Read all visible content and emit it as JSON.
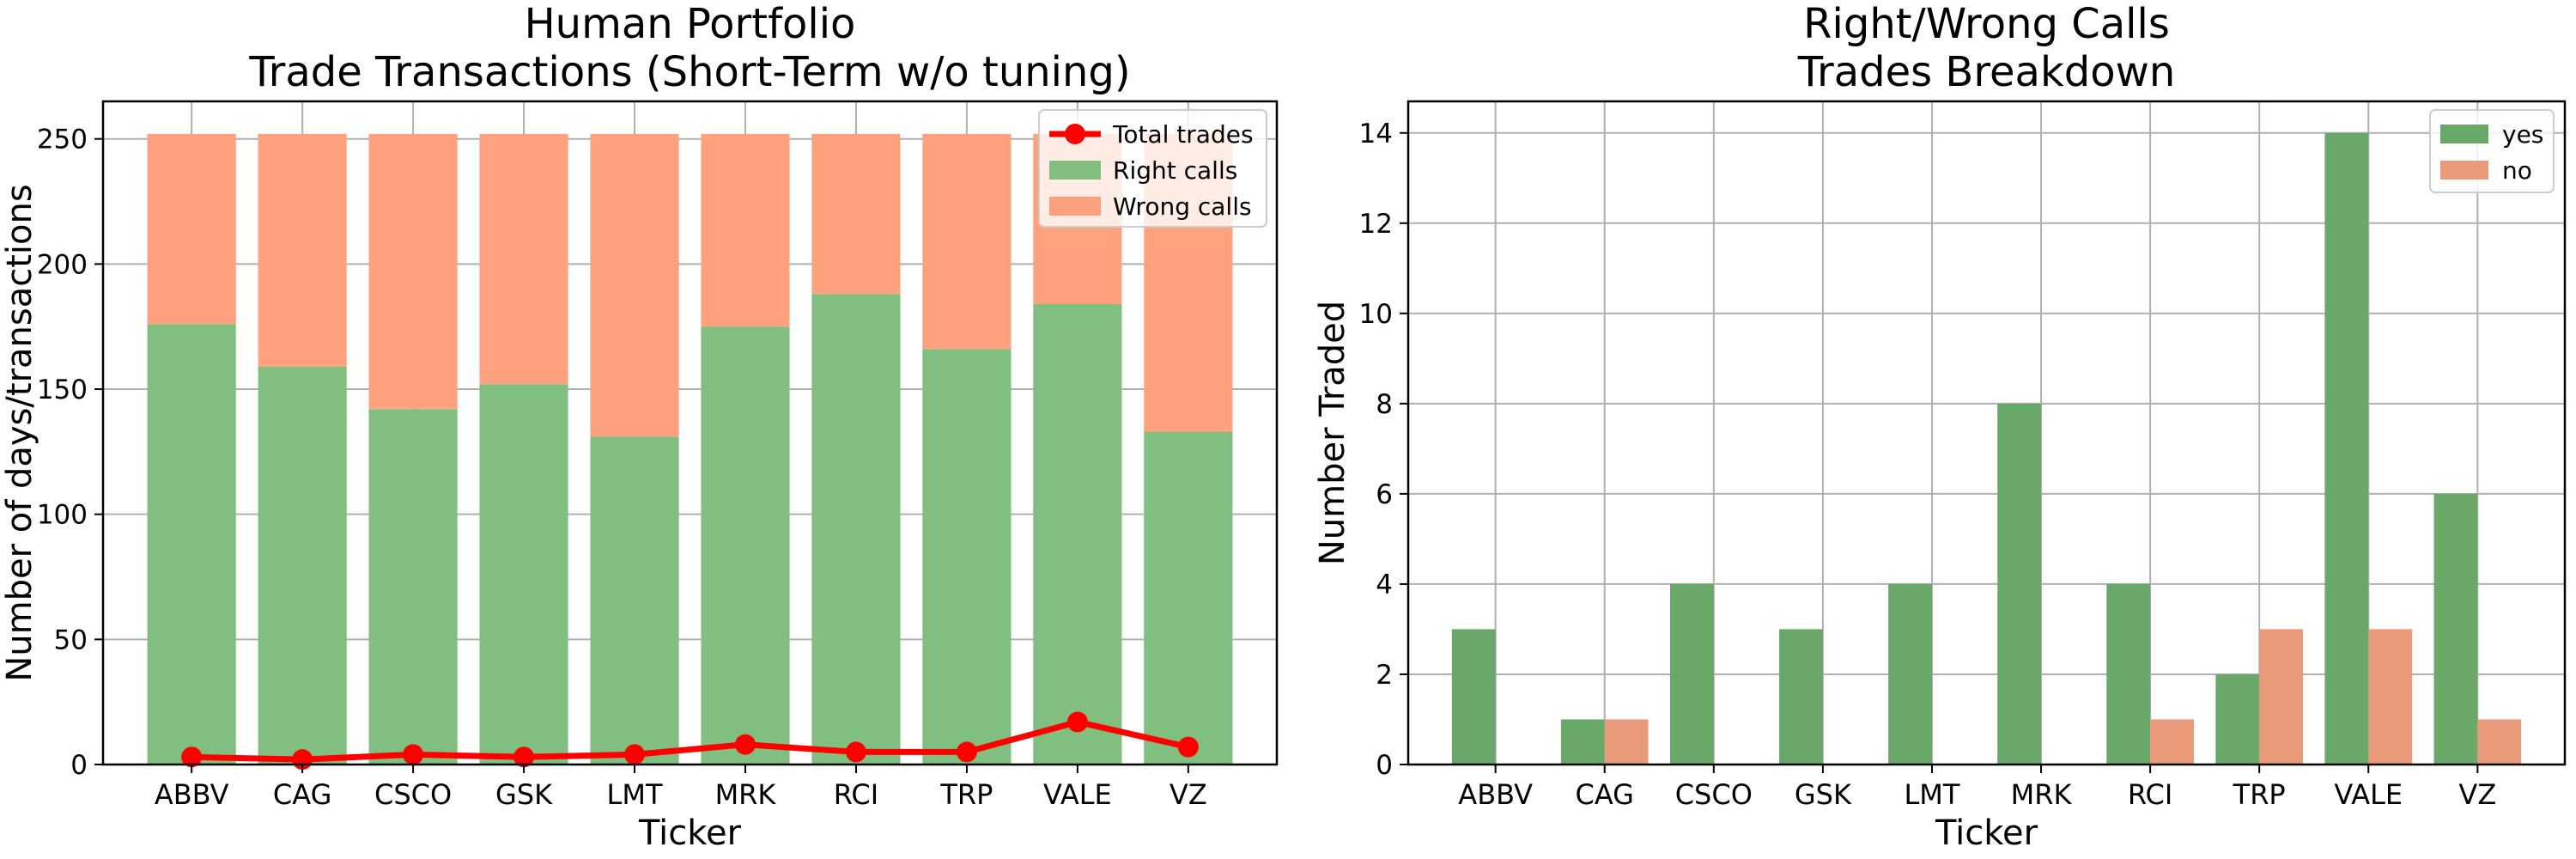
{
  "chart_data": [
    {
      "type": "bar",
      "stacked": true,
      "title": "Human Portfolio\nTrade Transactions (Short-Term w/o tuning)",
      "xlabel": "Ticker",
      "ylabel": "Number of days/transactions",
      "categories": [
        "ABBV",
        "CAG",
        "CSCO",
        "GSK",
        "LMT",
        "MRK",
        "RCI",
        "TRP",
        "VALE",
        "VZ"
      ],
      "ylim": [
        0,
        265
      ],
      "yticks": [
        0,
        50,
        100,
        150,
        200,
        250
      ],
      "grid": true,
      "legend": "top-right",
      "series": [
        {
          "name": "Right calls",
          "kind": "bar",
          "color": "#80bf80",
          "values": [
            176,
            159,
            142,
            152,
            131,
            175,
            188,
            166,
            184,
            133
          ]
        },
        {
          "name": "Wrong calls",
          "kind": "bar",
          "color": "#ffa07f",
          "values": [
            76,
            93,
            110,
            100,
            121,
            77,
            64,
            86,
            68,
            119
          ]
        },
        {
          "name": "Total trades",
          "kind": "line",
          "color": "#ff0000",
          "values": [
            3,
            2,
            4,
            3,
            4,
            8,
            5,
            5,
            17,
            7
          ]
        }
      ]
    },
    {
      "type": "bar",
      "grouped": true,
      "title": "Right/Wrong Calls\nTrades Breakdown",
      "xlabel": "Ticker",
      "ylabel": "Number Traded",
      "categories": [
        "ABBV",
        "CAG",
        "CSCO",
        "GSK",
        "LMT",
        "MRK",
        "RCI",
        "TRP",
        "VALE",
        "VZ"
      ],
      "ylim": [
        0,
        14.7
      ],
      "yticks": [
        0,
        2,
        4,
        6,
        8,
        10,
        12,
        14
      ],
      "grid": true,
      "legend": "top-right",
      "series": [
        {
          "name": "yes",
          "color": "#6aa86a",
          "values": [
            3,
            1,
            4,
            3,
            4,
            8,
            4,
            2,
            14,
            6
          ]
        },
        {
          "name": "no",
          "color": "#e99a7a",
          "values": [
            0,
            1,
            0,
            0,
            0,
            0,
            1,
            3,
            3,
            1
          ]
        }
      ]
    }
  ]
}
